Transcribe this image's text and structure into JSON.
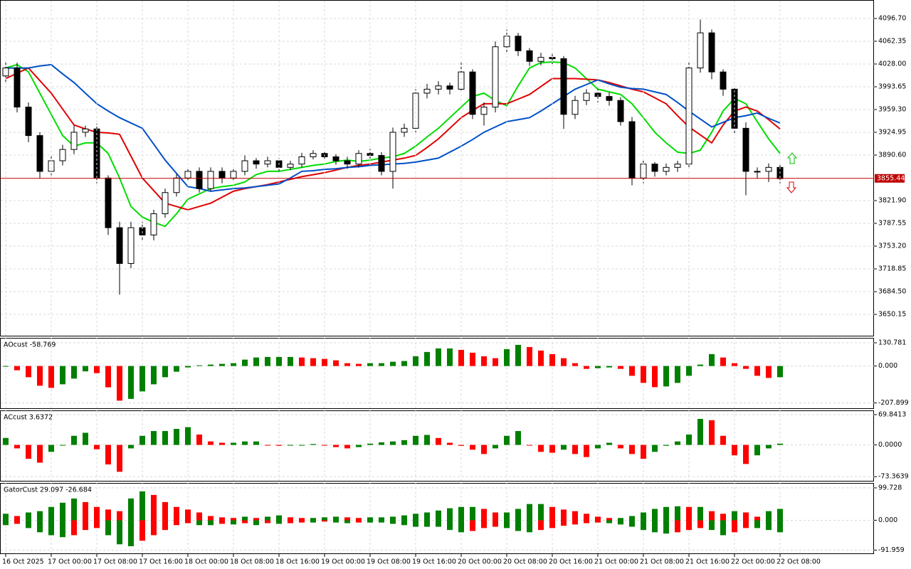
{
  "chart_data": [
    {
      "type": "candlestick",
      "open": [
        4010,
        4022,
        3963,
        3920,
        3866,
        3882,
        3899,
        3925,
        3930,
        3856,
        3781,
        3727,
        3781,
        3770,
        3802,
        3834,
        3856,
        3866,
        3840,
        3866,
        3856,
        3866,
        3882,
        3877,
        3882,
        3872,
        3877,
        3888,
        3893,
        3888,
        3882,
        3877,
        3893,
        3890,
        3866,
        3925,
        3931,
        3984,
        3990,
        3995,
        3990,
        4016,
        3952,
        3963,
        4054,
        4070,
        4048,
        4032,
        4038,
        4036,
        3952,
        3973,
        3984,
        3979,
        3973,
        3941,
        3856,
        3877,
        3866,
        3872,
        3877,
        4022,
        4075,
        4016,
        3990,
        3931,
        3866,
        3866,
        3872
      ],
      "high": [
        4030,
        4030,
        3970,
        3925,
        3890,
        3906,
        3935,
        3935,
        3938,
        3860,
        3790,
        3790,
        3790,
        3808,
        3840,
        3862,
        3872,
        3872,
        3872,
        3872,
        3870,
        3890,
        3886,
        3888,
        3886,
        3882,
        3894,
        3898,
        3898,
        3892,
        3888,
        3898,
        3900,
        3895,
        3932,
        3938,
        3990,
        3998,
        4002,
        4000,
        4030,
        4020,
        3970,
        4062,
        4080,
        4075,
        4052,
        4045,
        4044,
        4040,
        3980,
        3990,
        3990,
        3985,
        3978,
        3948,
        3885,
        3880,
        3878,
        3882,
        4030,
        4095,
        4080,
        4020,
        3995,
        3940,
        3872,
        3878,
        3878
      ],
      "low": [
        4000,
        3955,
        3910,
        3855,
        3860,
        3875,
        3892,
        3918,
        3848,
        3770,
        3680,
        3720,
        3762,
        3762,
        3796,
        3828,
        3850,
        3834,
        3836,
        3848,
        3850,
        3860,
        3870,
        3872,
        3865,
        3868,
        3872,
        3884,
        3882,
        3876,
        3870,
        3872,
        3882,
        3860,
        3840,
        3918,
        3925,
        3976,
        3982,
        3982,
        3985,
        3945,
        3935,
        3955,
        4045,
        4040,
        4025,
        4026,
        4028,
        3930,
        3945,
        3966,
        3970,
        3965,
        3935,
        3845,
        3848,
        3858,
        3860,
        3865,
        3870,
        4015,
        4005,
        3980,
        3922,
        3830,
        3855,
        3850,
        3848
      ],
      "close": [
        4022,
        3963,
        3920,
        3866,
        3882,
        3899,
        3925,
        3930,
        3856,
        3781,
        3727,
        3781,
        3770,
        3802,
        3834,
        3856,
        3866,
        3840,
        3866,
        3856,
        3866,
        3882,
        3877,
        3882,
        3872,
        3877,
        3888,
        3893,
        3888,
        3882,
        3877,
        3893,
        3890,
        3866,
        3925,
        3931,
        3984,
        3990,
        3995,
        3990,
        4016,
        3952,
        3963,
        4054,
        4070,
        4048,
        4032,
        4038,
        4036,
        3952,
        3973,
        3984,
        3979,
        3973,
        3941,
        3856,
        3877,
        3866,
        3872,
        3877,
        4022,
        4075,
        4016,
        3990,
        3931,
        3866,
        3866,
        3872,
        3855
      ],
      "up_color": "#ffffff",
      "down_color": "#000000",
      "series": [
        {
          "color": "#00dd00",
          "values": [
            4022,
            4027,
            4016,
            3984,
            3952,
            3920,
            3904,
            3909,
            3909,
            3893,
            3856,
            3813,
            3797,
            3789,
            3783,
            3802,
            3824,
            3832,
            3840,
            3843,
            3845,
            3850,
            3861,
            3866,
            3866,
            3869,
            3872,
            3875,
            3877,
            3881,
            3883,
            3881,
            3883,
            3886,
            3888,
            3893,
            3904,
            3918,
            3931,
            3947,
            3963,
            3979,
            3984,
            3973,
            3965,
            3995,
            4022,
            4030,
            4031,
            4030,
            4022,
            4006,
            3990,
            3986,
            3982,
            3968,
            3947,
            3925,
            3909,
            3895,
            3893,
            3898,
            3925,
            3957,
            3976,
            3968,
            3941,
            3915,
            3893
          ]
        },
        {
          "color": "#e00000",
          "values": [
            4006,
            4014,
            4022,
            4003,
            3984,
            3960,
            3936,
            3930,
            3925,
            3924,
            3922,
            3889,
            3856,
            3837,
            3818,
            3813,
            3808,
            3813,
            3818,
            3827,
            3836,
            3840,
            3843,
            3846,
            3850,
            3854,
            3858,
            3861,
            3864,
            3868,
            3872,
            3875,
            3877,
            3880,
            3883,
            3886,
            3890,
            3902,
            3915,
            3931,
            3947,
            3958,
            3968,
            3968,
            3968,
            3975,
            3982,
            3994,
            4006,
            4006,
            4006,
            4005,
            4004,
            4000,
            3995,
            3990,
            3986,
            3977,
            3968,
            3950,
            3933,
            3921,
            3909,
            3936,
            3957,
            3963,
            3957,
            3944,
            3930
          ]
        },
        {
          "color": "#0050c8",
          "values": [
            4022,
            4022,
            4022,
            4025,
            4027,
            4013,
            4000,
            3984,
            3968,
            3957,
            3947,
            3939,
            3931,
            3907,
            3883,
            3863,
            3843,
            3840,
            3836,
            3838,
            3840,
            3841,
            3843,
            3845,
            3847,
            3856,
            3866,
            3867,
            3869,
            3870,
            3872,
            3873,
            3875,
            3876,
            3877,
            3878,
            3880,
            3883,
            3886,
            3895,
            3904,
            3914,
            3925,
            3933,
            3941,
            3944,
            3947,
            3957,
            3968,
            3979,
            3990,
            3997,
            4004,
            3998,
            3993,
            3991,
            3990,
            3986,
            3982,
            3970,
            3957,
            3945,
            3933,
            3940,
            3947,
            3950,
            3954,
            3946,
            3939
          ]
        }
      ],
      "current_price": 3855.44,
      "current_price_color": "#c00000",
      "ylim": [
        3618.0,
        4123.5
      ],
      "yticks": [
        {
          "value": 4096.7,
          "label": "4096.70"
        },
        4062.35,
        {
          "value": 4028,
          "label": "4028.00"
        },
        3993.65,
        {
          "value": 3959.3,
          "label": "3959.30"
        },
        3924.95,
        {
          "value": 3890.6,
          "label": "3890.60"
        },
        {
          "value": 3821.9,
          "label": "3821.90"
        },
        3787.55,
        {
          "value": 3753.2,
          "label": "3753.20"
        },
        3718.85,
        {
          "value": 3684.5,
          "label": "3684.50"
        },
        3650.15
      ],
      "x_labels": [
        "16 Oct 2025",
        "17 Oct 00:00",
        "17 Oct 08:00",
        "17 Oct 16:00",
        "18 Oct 00:00",
        "18 Oct 08:00",
        "18 Oct 16:00",
        "19 Oct 00:00",
        "19 Oct 08:00",
        "19 Oct 16:00",
        "20 Oct 00:00",
        "20 Oct 08:00",
        "20 Oct 16:00",
        "21 Oct 00:00",
        "21 Oct 08:00",
        "21 Oct 16:00",
        "22 Oct 00:00",
        "22 Oct 08:00"
      ],
      "grid": true
    },
    {
      "type": "histogram",
      "title": "AOcust -58.769",
      "values": [
        -2,
        -24,
        -63,
        -111,
        -123,
        -103,
        -71,
        -30,
        -40,
        -120,
        -195,
        -185,
        -143,
        -103,
        -63,
        -32,
        -8,
        4,
        8,
        12,
        16,
        36,
        48,
        51,
        51,
        51,
        48,
        44,
        40,
        32,
        16,
        12,
        16,
        16,
        24,
        28,
        55,
        79,
        99,
        99,
        91,
        75,
        55,
        44,
        95,
        119,
        107,
        87,
        67,
        44,
        16,
        -16,
        -12,
        -8,
        -16,
        -55,
        -95,
        -119,
        -115,
        -95,
        -55,
        8,
        67,
        48,
        16,
        -16,
        -55,
        -67,
        -63
      ],
      "up_color": "#008000",
      "down_color": "#ff0000",
      "ylim": [
        -237.8,
        154.6
      ],
      "yticks": [
        130.781,
        {
          "value": 0,
          "label": "0.000"
        },
        -207.899
      ],
      "grid": true
    },
    {
      "type": "histogram",
      "title": "ACcust 3.6372",
      "values": [
        16,
        -8,
        -32,
        -41,
        -16,
        0,
        21,
        28,
        -10,
        -45,
        -62,
        -8,
        21,
        32,
        32,
        37,
        41,
        24,
        8,
        5,
        5,
        8,
        8,
        0,
        -2,
        0,
        0,
        2,
        0,
        -5,
        -8,
        -5,
        3,
        6,
        8,
        11,
        21,
        23,
        16,
        5,
        -2,
        -11,
        -21,
        -8,
        21,
        32,
        0,
        -16,
        -18,
        -11,
        -21,
        -28,
        -8,
        5,
        -8,
        -21,
        -32,
        -16,
        -2,
        8,
        24,
        60,
        57,
        21,
        -24,
        -44,
        -24,
        -8,
        3
      ],
      "up_color": "#008000",
      "down_color": "#ff0000",
      "ylim": [
        -82.8,
        78.0
      ],
      "yticks": [
        69.8413,
        {
          "value": 0,
          "label": "0.0000"
        },
        -73.3639
      ],
      "grid": true
    },
    {
      "type": "gator",
      "title": "GatorCust 29.097 -26.684",
      "upper": [
        20,
        13,
        24,
        28,
        41,
        54,
        67,
        56,
        41,
        33,
        28,
        67,
        89,
        78,
        56,
        41,
        33,
        24,
        13,
        9,
        7,
        11,
        7,
        11,
        15,
        9,
        7,
        7,
        9,
        11,
        9,
        7,
        9,
        9,
        11,
        15,
        20,
        24,
        30,
        37,
        41,
        41,
        35,
        24,
        24,
        35,
        50,
        50,
        41,
        33,
        28,
        20,
        11,
        7,
        7,
        13,
        24,
        35,
        41,
        43,
        41,
        41,
        28,
        20,
        28,
        24,
        11,
        28,
        35
      ],
      "lower": [
        -15,
        -11,
        -24,
        -37,
        -46,
        -52,
        -46,
        -30,
        -24,
        -46,
        -74,
        -80,
        -63,
        -46,
        -30,
        -15,
        -9,
        -15,
        -15,
        -11,
        -13,
        -9,
        -15,
        -9,
        -11,
        -9,
        -7,
        -7,
        -4,
        -7,
        -9,
        -7,
        -7,
        -7,
        -11,
        -15,
        -20,
        -20,
        -20,
        -30,
        -37,
        -33,
        -24,
        -20,
        -24,
        -33,
        -37,
        -30,
        -24,
        -17,
        -13,
        -9,
        -7,
        -9,
        -13,
        -20,
        -30,
        -37,
        -41,
        -37,
        -30,
        -24,
        -30,
        -46,
        -37,
        -24,
        -24,
        -30,
        -37
      ],
      "up_color": "#008000",
      "down_color": "#ff0000",
      "ylim": [
        -101.9,
        112.7
      ],
      "yticks": [
        99.728,
        {
          "value": 0,
          "label": "0.000"
        },
        -91.959
      ],
      "grid": true
    }
  ]
}
